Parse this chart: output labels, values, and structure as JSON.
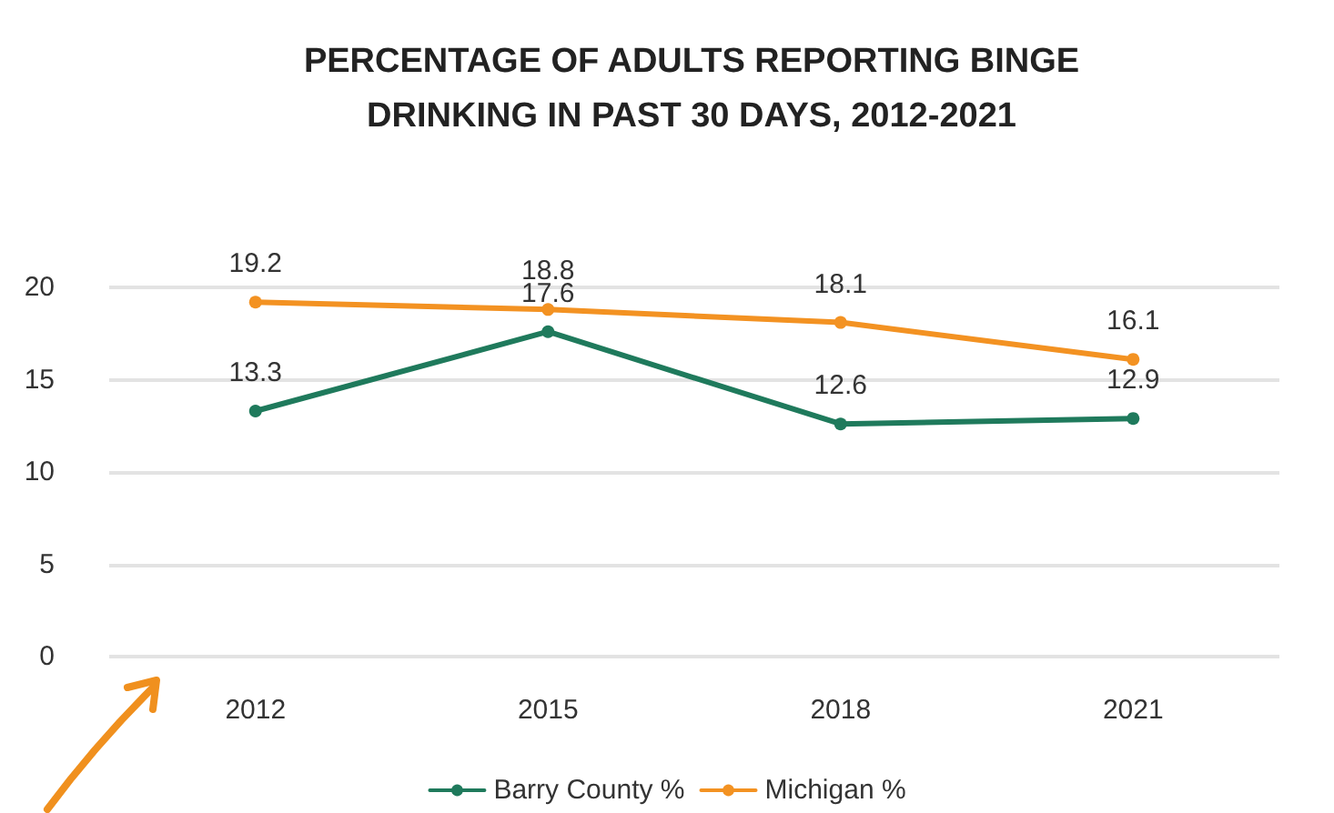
{
  "chart_data": {
    "type": "line",
    "title": "PERCENTAGE OF ADULTS REPORTING BINGE\nDRINKING IN PAST 30 DAYS, 2012-2021",
    "categories": [
      "2012",
      "2015",
      "2018",
      "2021"
    ],
    "series": [
      {
        "name": "Barry County %",
        "color": "#1f7a5c",
        "values": [
          13.3,
          17.6,
          12.6,
          12.9
        ]
      },
      {
        "name": "Michigan %",
        "color": "#f39222",
        "values": [
          19.2,
          18.8,
          18.1,
          16.1
        ]
      }
    ],
    "ylim": [
      0,
      20
    ],
    "yticks": [
      0,
      5,
      10,
      15,
      20
    ],
    "grid": "y",
    "legend": "bottom",
    "marker": "circle",
    "line_style": "solid",
    "data_labels": true
  }
}
